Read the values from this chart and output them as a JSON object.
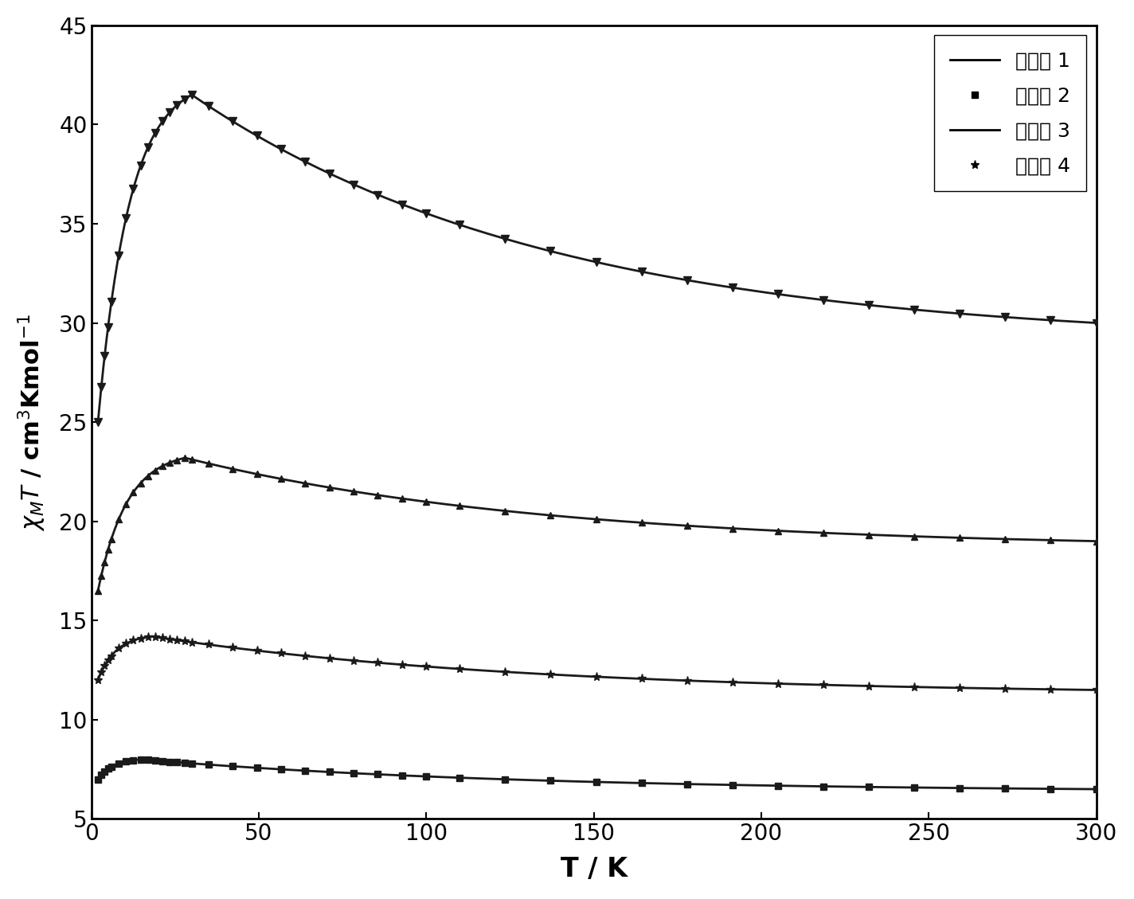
{
  "title": "",
  "xlabel": "T / K",
  "ylabel": "χₘT / cm³Kmol⁻¹",
  "xlim": [
    0,
    300
  ],
  "ylim": [
    5,
    45
  ],
  "xticks": [
    0,
    50,
    100,
    150,
    200,
    250,
    300
  ],
  "yticks": [
    5,
    10,
    15,
    20,
    25,
    30,
    35,
    40,
    45
  ],
  "legend_labels": [
    "第合物 1",
    "第合物 2",
    "第合物 3",
    "第合物 4"
  ],
  "line_color": "#1a1a1a",
  "background_color": "#ffffff",
  "series": {
    "compound1": {
      "T_start": 2,
      "val_start": 7.0,
      "T_peak": 15,
      "val_peak": 8.0,
      "T_end": 300,
      "val_end": 6.5,
      "marker": "s",
      "markersize": 6
    },
    "compound2": {
      "T_start": 2,
      "val_start": 12.0,
      "T_peak": 18,
      "val_peak": 14.2,
      "T_end": 300,
      "val_end": 11.5,
      "marker": "*",
      "markersize": 8
    },
    "compound3": {
      "T_start": 2,
      "val_start": 16.5,
      "T_peak": 28,
      "val_peak": 23.2,
      "T_end": 300,
      "val_end": 19.0,
      "marker": "^",
      "markersize": 6
    },
    "compound4": {
      "T_start": 2,
      "val_start": 25.0,
      "T_peak": 30,
      "val_peak": 41.5,
      "T_end": 300,
      "val_end": 30.0,
      "marker": "v",
      "markersize": 7
    }
  }
}
